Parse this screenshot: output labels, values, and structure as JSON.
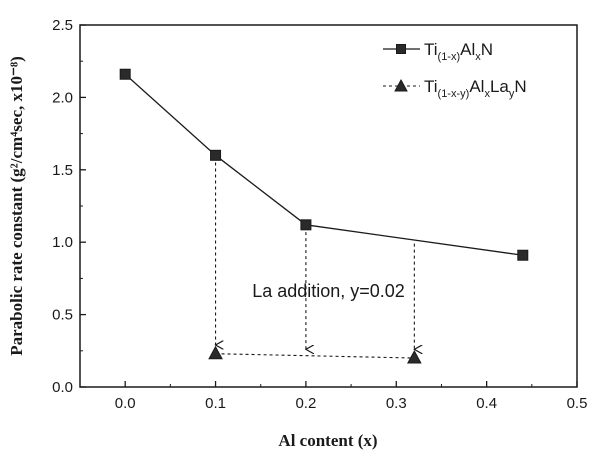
{
  "chart_data": {
    "type": "line",
    "xlabel": "Al content (x)",
    "ylabel": "Parabolic rate constant (g²/cm⁴sec, x10⁻⁸)",
    "xlim": [
      -0.05,
      0.5
    ],
    "ylim": [
      0.0,
      2.5
    ],
    "xticks": [
      "0.0",
      "0.1",
      "0.2",
      "0.3",
      "0.4",
      "0.5"
    ],
    "yticks": [
      "0.0",
      "0.5",
      "1.0",
      "1.5",
      "2.0",
      "2.5"
    ],
    "grid": false,
    "legend_position": "top-right",
    "series": [
      {
        "name": "Ti(1-x)AlxN",
        "marker": "square",
        "line_style": "solid",
        "x": [
          0.0,
          0.1,
          0.2,
          0.44
        ],
        "y": [
          2.16,
          1.6,
          1.12,
          0.91
        ]
      },
      {
        "name": "Ti(1-x-y)AlxLayN",
        "marker": "triangle",
        "line_style": "dashed",
        "x": [
          0.1,
          0.32
        ],
        "y": [
          0.23,
          0.2
        ]
      }
    ],
    "annotations": [
      {
        "text": "La addition, y=0.02",
        "x": 0.225,
        "y": 0.62
      }
    ],
    "arrows": [
      {
        "from": [
          0.1,
          1.55
        ],
        "to": [
          0.1,
          0.29
        ]
      },
      {
        "from": [
          0.2,
          1.07
        ],
        "to": [
          0.2,
          0.26
        ]
      },
      {
        "from": [
          0.32,
          0.99
        ],
        "to": [
          0.32,
          0.26
        ]
      }
    ]
  },
  "legend": {
    "s1": {
      "main": "Ti",
      "sub1": "(1-x)",
      "mid": "Al",
      "sub2": "x",
      "tail": "N"
    },
    "s2": {
      "main": "Ti",
      "sub1": "(1-x-y)",
      "mid": "Al",
      "sub2": "x",
      "mid2": "La",
      "sub3": "y",
      "tail": "N"
    }
  },
  "colors": {
    "ink": "#1a1a1a",
    "marker_fill": "#2a2a2a"
  }
}
